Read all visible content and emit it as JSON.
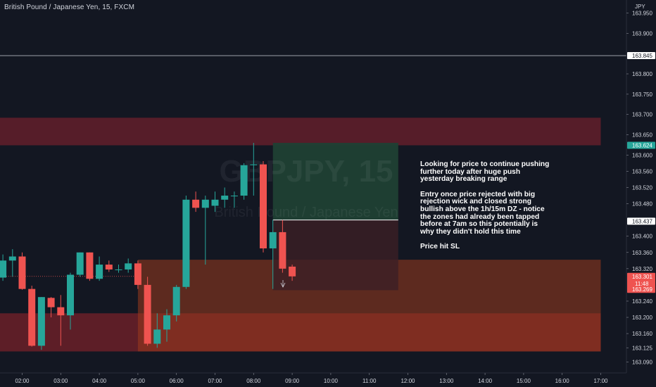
{
  "header": {
    "symbol_title": "British Pound / Japanese Yen, 15, FXCM",
    "currency_label": "JPY"
  },
  "watermark": {
    "symbol": "GBPJPY, 15",
    "description": "British Pound / Japanese Yen"
  },
  "annotation": {
    "paragraphs": [
      "Looking for price to continue pushing\nfurther today after huge push\nyesterday breaking range",
      "Entry once price rejected with big\nrejection wick and closed strong\nbullish above the 1h/15m DZ - notice\nthe zones had already been tapped\nbefore at 7am so this potentially is\nwhy they didn't hold this time",
      "Price hit SL"
    ]
  },
  "colors": {
    "background": "#131722",
    "bull": "#26a69a",
    "bear": "#ef5350",
    "supply_zone": "#5a1e2a",
    "demand_zone_lower": "#6b2028",
    "demand_zone_orange": "#9a3a1e",
    "target_zone": "#1f4034",
    "stop_zone": "#3c1f25",
    "label_bull": "#26a69a",
    "label_bear": "#ef5350"
  },
  "chart_data": {
    "type": "candlestick",
    "timeframe": "15",
    "y_axis": {
      "min": 163.07,
      "max": 163.975,
      "ticks": [
        "163.950",
        "163.900",
        "163.845",
        "163.800",
        "163.750",
        "163.700",
        "163.650",
        "163.624",
        "163.600",
        "163.560",
        "163.520",
        "163.480",
        "163.437",
        "163.400",
        "163.360",
        "163.320",
        "163.301",
        "163.269",
        "163.240",
        "163.200",
        "163.160",
        "163.125",
        "163.090"
      ]
    },
    "x_axis": {
      "ticks": [
        "02:00",
        "03:00",
        "04:00",
        "05:00",
        "06:00",
        "07:00",
        "08:00",
        "09:00",
        "10:00",
        "11:00",
        "12:00",
        "13:00",
        "14:00",
        "15:00",
        "16:00",
        "17:00"
      ]
    },
    "price_labels": [
      {
        "value": "163.845",
        "style": "line"
      },
      {
        "value": "163.624",
        "style": "bull"
      },
      {
        "value": "163.437",
        "style": "line"
      },
      {
        "value": "163.301",
        "style": "bear",
        "countdown": "11:48"
      },
      {
        "value": "163.269",
        "style": "bear"
      }
    ],
    "horizontal_lines": [
      163.845
    ],
    "zones": [
      {
        "name": "supply-zone",
        "from_time": "01:25",
        "to_time": "17:00",
        "low": 163.624,
        "high": 163.692
      },
      {
        "name": "demand-zone-1h",
        "from_time": "01:25",
        "to_time": "17:00",
        "low": 163.116,
        "high": 163.21
      },
      {
        "name": "demand-zone-15m",
        "from_time": "05:00",
        "to_time": "17:00",
        "low": 163.116,
        "high": 163.342
      },
      {
        "name": "target-zone",
        "from_time": "08:30",
        "to_time": "11:45",
        "low": 163.44,
        "high": 163.63
      },
      {
        "name": "stop-zone",
        "from_time": "08:30",
        "to_time": "11:45",
        "low": 163.267,
        "high": 163.44
      }
    ],
    "candles": [
      {
        "t": "01:30",
        "o": 163.298,
        "h": 163.355,
        "l": 163.29,
        "c": 163.34
      },
      {
        "t": "01:45",
        "o": 163.34,
        "h": 163.368,
        "l": 163.3,
        "c": 163.35
      },
      {
        "t": "02:00",
        "o": 163.35,
        "h": 163.36,
        "l": 163.268,
        "c": 163.27
      },
      {
        "t": "02:15",
        "o": 163.27,
        "h": 163.278,
        "l": 163.128,
        "c": 163.13
      },
      {
        "t": "02:30",
        "o": 163.13,
        "h": 163.25,
        "l": 163.12,
        "c": 163.25
      },
      {
        "t": "02:45",
        "o": 163.248,
        "h": 163.25,
        "l": 163.2,
        "c": 163.225
      },
      {
        "t": "03:00",
        "o": 163.225,
        "h": 163.255,
        "l": 163.13,
        "c": 163.205
      },
      {
        "t": "03:15",
        "o": 163.205,
        "h": 163.31,
        "l": 163.17,
        "c": 163.305
      },
      {
        "t": "03:30",
        "o": 163.305,
        "h": 163.36,
        "l": 163.3,
        "c": 163.36
      },
      {
        "t": "03:45",
        "o": 163.36,
        "h": 163.36,
        "l": 163.29,
        "c": 163.295
      },
      {
        "t": "04:00",
        "o": 163.295,
        "h": 163.35,
        "l": 163.29,
        "c": 163.33
      },
      {
        "t": "04:15",
        "o": 163.33,
        "h": 163.34,
        "l": 163.312,
        "c": 163.318
      },
      {
        "t": "04:30",
        "o": 163.318,
        "h": 163.33,
        "l": 163.31,
        "c": 163.318
      },
      {
        "t": "04:45",
        "o": 163.318,
        "h": 163.345,
        "l": 163.31,
        "c": 163.333
      },
      {
        "t": "05:00",
        "o": 163.333,
        "h": 163.34,
        "l": 163.27,
        "c": 163.28
      },
      {
        "t": "05:15",
        "o": 163.28,
        "h": 163.3,
        "l": 163.13,
        "c": 163.135
      },
      {
        "t": "05:30",
        "o": 163.135,
        "h": 163.21,
        "l": 163.125,
        "c": 163.17
      },
      {
        "t": "05:45",
        "o": 163.17,
        "h": 163.22,
        "l": 163.14,
        "c": 163.205
      },
      {
        "t": "06:00",
        "o": 163.205,
        "h": 163.28,
        "l": 163.19,
        "c": 163.275
      },
      {
        "t": "06:15",
        "o": 163.275,
        "h": 163.5,
        "l": 163.27,
        "c": 163.49
      },
      {
        "t": "06:30",
        "o": 163.49,
        "h": 163.51,
        "l": 163.46,
        "c": 163.47
      },
      {
        "t": "06:45",
        "o": 163.47,
        "h": 163.5,
        "l": 163.33,
        "c": 163.49
      },
      {
        "t": "07:00",
        "o": 163.475,
        "h": 163.51,
        "l": 163.46,
        "c": 163.49
      },
      {
        "t": "07:15",
        "o": 163.49,
        "h": 163.52,
        "l": 163.47,
        "c": 163.5
      },
      {
        "t": "07:30",
        "o": 163.5,
        "h": 163.51,
        "l": 163.47,
        "c": 163.5
      },
      {
        "t": "07:45",
        "o": 163.5,
        "h": 163.58,
        "l": 163.49,
        "c": 163.575
      },
      {
        "t": "08:00",
        "o": 163.575,
        "h": 163.63,
        "l": 163.5,
        "c": 163.577
      },
      {
        "t": "08:15",
        "o": 163.577,
        "h": 163.585,
        "l": 163.36,
        "c": 163.37
      },
      {
        "t": "08:30",
        "o": 163.37,
        "h": 163.44,
        "l": 163.27,
        "c": 163.41
      },
      {
        "t": "08:45",
        "o": 163.41,
        "h": 163.44,
        "l": 163.31,
        "c": 163.32
      },
      {
        "t": "09:00",
        "o": 163.325,
        "h": 163.33,
        "l": 163.29,
        "c": 163.301
      }
    ]
  }
}
